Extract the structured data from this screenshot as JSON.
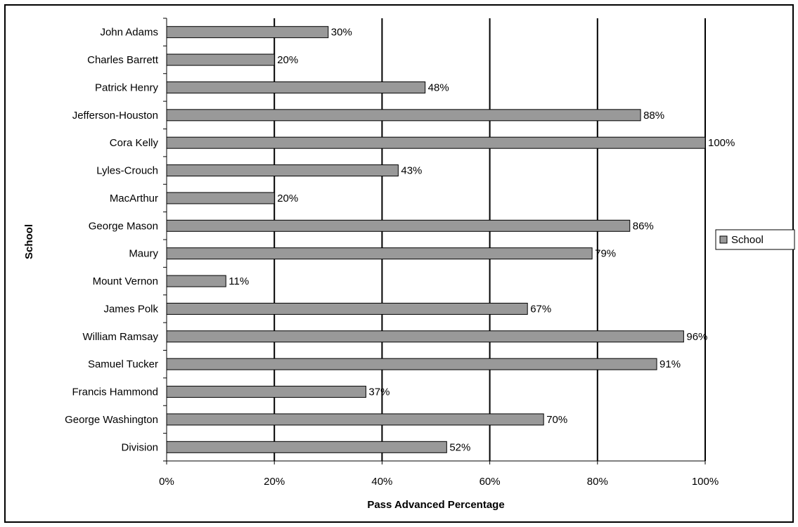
{
  "chart_data": {
    "type": "bar",
    "orientation": "horizontal",
    "categories": [
      "John Adams",
      "Charles Barrett",
      "Patrick Henry",
      "Jefferson-Houston",
      "Cora Kelly",
      "Lyles-Crouch",
      "MacArthur",
      "George Mason",
      "Maury",
      "Mount Vernon",
      "James Polk",
      "William Ramsay",
      "Samuel Tucker",
      "Francis Hammond",
      "George Washington",
      "Division"
    ],
    "series": [
      {
        "name": "School",
        "values": [
          30,
          20,
          48,
          88,
          100,
          43,
          20,
          86,
          79,
          11,
          67,
          96,
          91,
          37,
          70,
          52
        ]
      }
    ],
    "data_labels": [
      "30%",
      "20%",
      "48%",
      "88%",
      "100%",
      "43%",
      "20%",
      "86%",
      "79%",
      "11%",
      "67%",
      "96%",
      "91%",
      "37%",
      "70%",
      "52%"
    ],
    "xlabel": "Pass Advanced Percentage",
    "ylabel": "School",
    "xlim": [
      0,
      100
    ],
    "xticks": [
      0,
      20,
      40,
      60,
      80,
      100
    ],
    "xtick_labels": [
      "0%",
      "20%",
      "40%",
      "60%",
      "80%",
      "100%"
    ],
    "grid": "vertical major gridlines",
    "legend": "right",
    "colors": {
      "bar_fill": "#999999",
      "bar_stroke": "#000000",
      "gridline": "#000000"
    }
  }
}
